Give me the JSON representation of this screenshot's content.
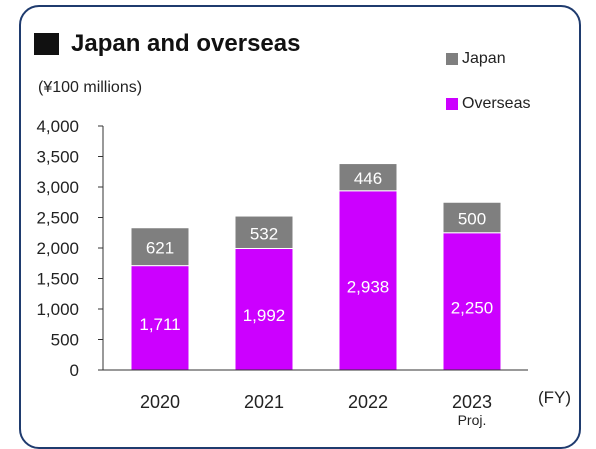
{
  "header": {
    "title": "Japan and overseas",
    "unit": "(¥100 millions)",
    "fy": "(FY)"
  },
  "colors": {
    "japan": "#7f7f7f",
    "overseas": "#cc00ff",
    "frame": "#1f3b6e"
  },
  "chart_data": {
    "type": "bar",
    "stacked": true,
    "categories": [
      "2020",
      "2021",
      "2022",
      "2023"
    ],
    "category_sublabels": [
      "",
      "",
      "",
      "Proj."
    ],
    "series": [
      {
        "name": "Overseas",
        "values": [
          1711,
          1992,
          2938,
          2250
        ],
        "labels": [
          "1,711",
          "1,992",
          "2,938",
          "2,250"
        ]
      },
      {
        "name": "Japan",
        "values": [
          621,
          532,
          446,
          500
        ],
        "labels": [
          "621",
          "532",
          "446",
          "500"
        ]
      }
    ],
    "ylim": [
      0,
      4000
    ],
    "yticks": [
      0,
      500,
      1000,
      1500,
      2000,
      2500,
      3000,
      3500,
      4000
    ],
    "ytick_labels": [
      "0",
      "500",
      "1,000",
      "1,500",
      "2,000",
      "2,500",
      "3,000",
      "3,500",
      "4,000"
    ],
    "legend": {
      "placement": "top-right",
      "entries": [
        "Japan",
        "Overseas"
      ]
    },
    "grid": false
  }
}
